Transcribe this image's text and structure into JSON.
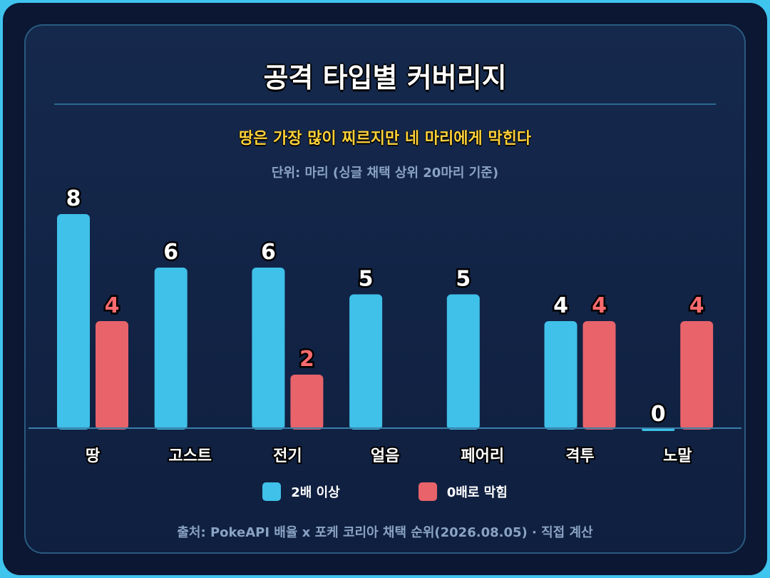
{
  "chart_data": {
    "type": "bar",
    "title": "공격 타입별 커버리지",
    "subtitle": "땅은 가장 많이 찌르지만 네 마리에게 막힌다",
    "unit_note": "단위: 마리 (싱글 채택 상위 20마리 기준)",
    "categories": [
      "땅",
      "고스트",
      "전기",
      "얼음",
      "페어리",
      "격투",
      "노말"
    ],
    "series": [
      {
        "name": "2배 이상",
        "color": "#3fc1e9",
        "values": [
          8,
          6,
          6,
          5,
          5,
          4,
          0
        ]
      },
      {
        "name": "0배로 막힘",
        "color": "#e8636a",
        "values": [
          4,
          0,
          2,
          0,
          0,
          4,
          4
        ]
      }
    ],
    "ylim": [
      0,
      8
    ],
    "grid": false,
    "legend_position": "bottom",
    "source": "출처: PokeAPI 배율 x 포케 코리아 채택 순위(2026.08.05) · 직접 계산"
  }
}
